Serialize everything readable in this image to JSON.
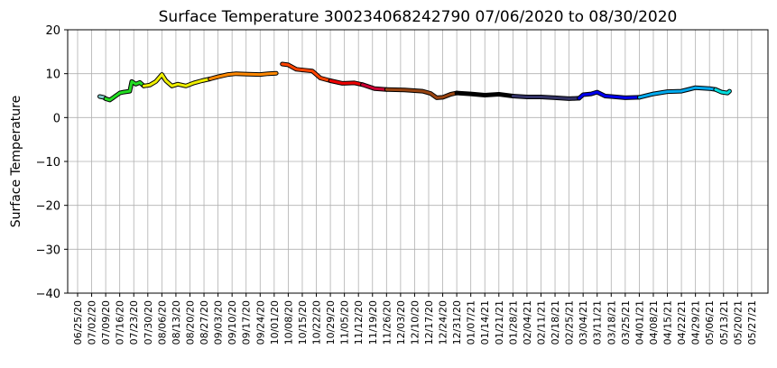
{
  "chart_data": {
    "type": "line",
    "title": "Surface Temperature 300234068242790  07/06/2020 to 08/30/2020",
    "xlabel": "",
    "ylabel": "Surface Temperature",
    "ylim": [
      -40,
      20
    ],
    "yticks": [
      -40,
      -30,
      -20,
      -10,
      0,
      10,
      20
    ],
    "xticks": [
      "06/25/20",
      "07/02/20",
      "07/09/20",
      "07/16/20",
      "07/23/20",
      "07/30/20",
      "08/06/20",
      "08/13/20",
      "08/20/20",
      "08/27/20",
      "09/03/20",
      "09/10/20",
      "09/17/20",
      "09/24/20",
      "10/01/20",
      "10/08/20",
      "10/15/20",
      "10/22/20",
      "10/29/20",
      "11/05/20",
      "11/12/20",
      "11/19/20",
      "11/26/20",
      "12/03/20",
      "12/10/20",
      "12/17/20",
      "12/24/20",
      "12/31/20",
      "01/07/21",
      "01/14/21",
      "01/21/21",
      "01/28/21",
      "02/04/21",
      "02/11/21",
      "02/18/21",
      "02/25/21",
      "03/04/21",
      "03/11/21",
      "03/18/21",
      "03/25/21",
      "04/01/21",
      "04/08/21",
      "04/15/21",
      "04/22/21",
      "04/29/21",
      "05/06/21",
      "05/13/21",
      "05/20/21",
      "05/27/21"
    ],
    "grid": true,
    "series": [
      {
        "color": "#7ec8c8",
        "points": [
          [
            "07/06/20",
            4.8
          ],
          [
            "07/08/20",
            4.6
          ],
          [
            "07/09/20",
            4.3
          ]
        ]
      },
      {
        "color": "#22dd22",
        "points": [
          [
            "07/09/20",
            4.3
          ],
          [
            "07/11/20",
            4.0
          ],
          [
            "07/13/20",
            4.6
          ],
          [
            "07/16/20",
            5.6
          ],
          [
            "07/18/20",
            5.8
          ],
          [
            "07/21/20",
            6.0
          ],
          [
            "07/22/20",
            8.2
          ],
          [
            "07/24/20",
            7.6
          ],
          [
            "07/26/20",
            8.0
          ],
          [
            "07/28/20",
            7.2
          ]
        ]
      },
      {
        "color": "#eeee00",
        "points": [
          [
            "07/28/20",
            7.2
          ],
          [
            "07/31/20",
            7.4
          ],
          [
            "08/03/20",
            8.2
          ],
          [
            "08/06/20",
            9.8
          ],
          [
            "08/08/20",
            8.4
          ],
          [
            "08/11/20",
            7.2
          ],
          [
            "08/14/20",
            7.6
          ],
          [
            "08/18/20",
            7.2
          ],
          [
            "08/22/20",
            7.9
          ],
          [
            "08/26/20",
            8.4
          ],
          [
            "08/30/20",
            8.8
          ]
        ]
      },
      {
        "color": "#ff8800",
        "points": [
          [
            "08/30/20",
            8.8
          ],
          [
            "09/03/20",
            9.3
          ],
          [
            "09/08/20",
            9.8
          ],
          [
            "09/12/20",
            10.0
          ],
          [
            "09/18/20",
            9.9
          ],
          [
            "09/24/20",
            9.8
          ],
          [
            "09/28/20",
            10.0
          ],
          [
            "10/02/20",
            10.1
          ]
        ]
      },
      {
        "color": "#ff4400",
        "points": [
          [
            "10/05/20",
            12.2
          ],
          [
            "10/08/20",
            12.0
          ],
          [
            "10/12/20",
            11.0
          ],
          [
            "10/16/20",
            10.8
          ],
          [
            "10/20/20",
            10.6
          ],
          [
            "10/24/20",
            9.0
          ],
          [
            "10/29/20",
            8.4
          ]
        ]
      },
      {
        "color": "#ee0000",
        "points": [
          [
            "10/29/20",
            8.4
          ],
          [
            "11/04/20",
            7.8
          ],
          [
            "11/10/20",
            7.9
          ],
          [
            "11/14/20",
            7.5
          ]
        ]
      },
      {
        "color": "#cc0033",
        "points": [
          [
            "11/14/20",
            7.5
          ],
          [
            "11/20/20",
            6.6
          ],
          [
            "11/26/20",
            6.4
          ]
        ]
      },
      {
        "color": "#994411",
        "points": [
          [
            "11/26/20",
            6.4
          ],
          [
            "12/05/20",
            6.3
          ],
          [
            "12/14/20",
            6.0
          ],
          [
            "12/18/20",
            5.5
          ],
          [
            "12/21/20",
            4.5
          ],
          [
            "12/24/20",
            4.6
          ],
          [
            "12/28/20",
            5.3
          ],
          [
            "12/31/20",
            5.6
          ]
        ]
      },
      {
        "color": "#000000",
        "points": [
          [
            "12/31/20",
            5.6
          ],
          [
            "01/07/21",
            5.4
          ],
          [
            "01/14/21",
            5.1
          ],
          [
            "01/21/21",
            5.3
          ],
          [
            "01/28/21",
            4.9
          ]
        ]
      },
      {
        "color": "#333366",
        "points": [
          [
            "01/28/21",
            4.9
          ],
          [
            "02/04/21",
            4.7
          ],
          [
            "02/11/21",
            4.7
          ],
          [
            "02/18/21",
            4.5
          ],
          [
            "02/25/21",
            4.3
          ],
          [
            "03/02/21",
            4.4
          ]
        ]
      },
      {
        "color": "#0000ee",
        "points": [
          [
            "03/02/21",
            4.4
          ],
          [
            "03/04/21",
            5.2
          ],
          [
            "03/08/21",
            5.4
          ],
          [
            "03/11/21",
            5.8
          ],
          [
            "03/15/21",
            4.9
          ],
          [
            "03/18/21",
            4.8
          ],
          [
            "03/25/21",
            4.5
          ],
          [
            "04/01/21",
            4.6
          ]
        ]
      },
      {
        "color": "#00aaee",
        "points": [
          [
            "04/01/21",
            4.6
          ],
          [
            "04/08/21",
            5.4
          ],
          [
            "04/15/21",
            5.9
          ],
          [
            "04/22/21",
            6.0
          ],
          [
            "04/29/21",
            6.8
          ],
          [
            "05/06/21",
            6.6
          ],
          [
            "05/09/21",
            6.4
          ]
        ]
      },
      {
        "color": "#00dddd",
        "points": [
          [
            "05/09/21",
            6.4
          ],
          [
            "05/12/21",
            5.8
          ],
          [
            "05/15/21",
            5.6
          ],
          [
            "05/16/21",
            6.0
          ]
        ]
      }
    ]
  }
}
